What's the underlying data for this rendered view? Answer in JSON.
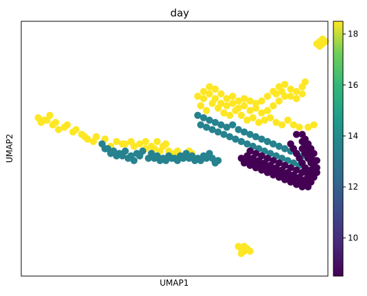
{
  "chart_data": {
    "type": "scatter",
    "title": "day",
    "xlabel": "UMAP1",
    "ylabel": "UMAP2",
    "xlim": [
      0,
      100
    ],
    "ylim": [
      0,
      100
    ],
    "x_ticks_shown": false,
    "y_ticks_shown": false,
    "grid": false,
    "colormap": "viridis",
    "colorbar": {
      "label": "",
      "range": [
        8.5,
        18.5
      ],
      "ticks": [
        10,
        12,
        14,
        16,
        18
      ],
      "tick_labels": [
        "10",
        "12",
        "14",
        "16",
        "18"
      ],
      "position": "right"
    },
    "clusters": [
      {
        "color_value": 18.0,
        "color": "#fde725",
        "points": [
          [
            5,
            62
          ],
          [
            8,
            60
          ],
          [
            12,
            59
          ],
          [
            15,
            57
          ],
          [
            18,
            56
          ],
          [
            20,
            54
          ],
          [
            22,
            53
          ],
          [
            25,
            52
          ],
          [
            28,
            51
          ],
          [
            32,
            52
          ],
          [
            35,
            53
          ],
          [
            38,
            52
          ],
          [
            42,
            51
          ],
          [
            44,
            53
          ],
          [
            47,
            52
          ],
          [
            50,
            48
          ],
          [
            53,
            47
          ],
          [
            56,
            48
          ],
          [
            45,
            49
          ],
          [
            40,
            50
          ]
        ]
      },
      {
        "color_value": 18.0,
        "color": "#fde725",
        "points": [
          [
            3,
            63
          ],
          [
            4,
            61
          ],
          [
            6,
            62
          ],
          [
            7,
            64
          ],
          [
            9,
            61
          ],
          [
            10,
            58
          ],
          [
            13,
            60
          ],
          [
            16,
            58
          ],
          [
            19,
            55
          ],
          [
            23,
            55
          ],
          [
            26,
            54
          ],
          [
            30,
            53
          ],
          [
            33,
            52
          ],
          [
            36,
            51
          ],
          [
            40,
            53
          ],
          [
            43,
            50
          ],
          [
            46,
            51
          ],
          [
            48,
            49
          ],
          [
            51,
            49
          ],
          [
            55,
            49
          ]
        ]
      },
      {
        "color_value": 18.0,
        "color": "#fde725",
        "points": [
          [
            58,
            72
          ],
          [
            60,
            74
          ],
          [
            62,
            76
          ],
          [
            64,
            75
          ],
          [
            66,
            73
          ],
          [
            68,
            71
          ],
          [
            70,
            72
          ],
          [
            72,
            70
          ],
          [
            74,
            71
          ],
          [
            76,
            70
          ],
          [
            78,
            69
          ],
          [
            80,
            70
          ],
          [
            82,
            72
          ],
          [
            84,
            74
          ],
          [
            86,
            76
          ],
          [
            88,
            77
          ],
          [
            90,
            75
          ],
          [
            92,
            74
          ],
          [
            94,
            76
          ],
          [
            95,
            78
          ]
        ]
      },
      {
        "color_value": 18.0,
        "color": "#fde725",
        "points": [
          [
            59,
            68
          ],
          [
            61,
            66
          ],
          [
            63,
            69
          ],
          [
            65,
            67
          ],
          [
            67,
            65
          ],
          [
            69,
            64
          ],
          [
            71,
            66
          ],
          [
            73,
            64
          ],
          [
            75,
            62
          ],
          [
            77,
            63
          ],
          [
            79,
            61
          ],
          [
            81,
            62
          ],
          [
            83,
            63
          ],
          [
            85,
            61
          ],
          [
            87,
            60
          ],
          [
            89,
            62
          ],
          [
            91,
            60
          ],
          [
            93,
            59
          ],
          [
            96,
            59
          ],
          [
            98,
            60
          ]
        ]
      },
      {
        "color_value": 18.0,
        "color": "#fde725",
        "points": [
          [
            60,
            71
          ],
          [
            62,
            73
          ],
          [
            64,
            71
          ],
          [
            66,
            69
          ],
          [
            68,
            68
          ],
          [
            70,
            69
          ],
          [
            72,
            67
          ],
          [
            74,
            68
          ],
          [
            76,
            66
          ],
          [
            78,
            67
          ],
          [
            80,
            65
          ],
          [
            82,
            66
          ],
          [
            84,
            68
          ],
          [
            86,
            70
          ],
          [
            88,
            72
          ],
          [
            90,
            72
          ],
          [
            92,
            71
          ],
          [
            94,
            73
          ],
          [
            85,
            73
          ],
          [
            87,
            74
          ]
        ]
      },
      {
        "color_value": 18.0,
        "color": "#fde725",
        "points": [
          [
            99,
            94
          ],
          [
            100,
            95
          ],
          [
            101,
            96
          ],
          [
            102,
            95
          ],
          [
            100,
            93
          ],
          [
            101,
            94
          ]
        ]
      },
      {
        "color_value": 18.0,
        "color": "#fde725",
        "points": [
          [
            72,
            9
          ],
          [
            73,
            8
          ],
          [
            74,
            7
          ],
          [
            75,
            8
          ],
          [
            76,
            7
          ],
          [
            74,
            9
          ],
          [
            73,
            6
          ]
        ]
      },
      {
        "color_value": 12.5,
        "color": "#26828e",
        "points": [
          [
            25,
            52
          ],
          [
            27,
            50
          ],
          [
            29,
            49
          ],
          [
            31,
            48
          ],
          [
            33,
            49
          ],
          [
            35,
            47
          ],
          [
            37,
            48
          ],
          [
            39,
            49
          ],
          [
            42,
            48
          ],
          [
            44,
            47
          ],
          [
            46,
            46
          ],
          [
            48,
            47
          ],
          [
            50,
            46
          ],
          [
            52,
            47
          ],
          [
            54,
            48
          ],
          [
            56,
            47
          ],
          [
            58,
            46
          ],
          [
            60,
            47
          ],
          [
            62,
            48
          ],
          [
            63,
            46
          ]
        ]
      },
      {
        "color_value": 12.5,
        "color": "#26828e",
        "points": [
          [
            26,
            50
          ],
          [
            28,
            48
          ],
          [
            30,
            47
          ],
          [
            32,
            47
          ],
          [
            34,
            46
          ],
          [
            36,
            45
          ],
          [
            38,
            47
          ],
          [
            41,
            46
          ],
          [
            43,
            46
          ],
          [
            45,
            45
          ],
          [
            47,
            45
          ],
          [
            49,
            46
          ],
          [
            51,
            45
          ],
          [
            53,
            46
          ],
          [
            55,
            46
          ],
          [
            57,
            45
          ],
          [
            59,
            45
          ],
          [
            61,
            46
          ],
          [
            64,
            44
          ],
          [
            65,
            45
          ]
        ]
      },
      {
        "color_value": 12.5,
        "color": "#26828e",
        "points": [
          [
            58,
            64
          ],
          [
            60,
            63
          ],
          [
            62,
            62
          ],
          [
            64,
            61
          ],
          [
            66,
            60
          ],
          [
            68,
            59
          ],
          [
            70,
            60
          ],
          [
            72,
            58
          ],
          [
            74,
            57
          ],
          [
            76,
            56
          ],
          [
            78,
            55
          ],
          [
            80,
            54
          ],
          [
            82,
            53
          ],
          [
            84,
            52
          ],
          [
            86,
            51
          ],
          [
            88,
            50
          ],
          [
            90,
            49
          ],
          [
            92,
            48
          ],
          [
            94,
            47
          ],
          [
            96,
            46
          ]
        ]
      },
      {
        "color_value": 12.5,
        "color": "#26828e",
        "points": [
          [
            59,
            60
          ],
          [
            61,
            59
          ],
          [
            63,
            58
          ],
          [
            65,
            57
          ],
          [
            67,
            56
          ],
          [
            69,
            55
          ],
          [
            71,
            54
          ],
          [
            73,
            53
          ],
          [
            75,
            52
          ],
          [
            77,
            51
          ],
          [
            79,
            50
          ],
          [
            81,
            49
          ],
          [
            83,
            48
          ],
          [
            85,
            47
          ],
          [
            87,
            46
          ],
          [
            89,
            45
          ],
          [
            91,
            44
          ],
          [
            93,
            43
          ],
          [
            95,
            42
          ],
          [
            97,
            41
          ]
        ]
      },
      {
        "color_value": 8.5,
        "color": "#440154",
        "points": [
          [
            73,
            46
          ],
          [
            75,
            45
          ],
          [
            77,
            44
          ],
          [
            79,
            43
          ],
          [
            81,
            42
          ],
          [
            83,
            41
          ],
          [
            85,
            40
          ],
          [
            87,
            39
          ],
          [
            89,
            38
          ],
          [
            91,
            37
          ],
          [
            93,
            36
          ],
          [
            95,
            35
          ],
          [
            97,
            36
          ],
          [
            98,
            38
          ],
          [
            99,
            40
          ],
          [
            98,
            42
          ],
          [
            97,
            44
          ],
          [
            96,
            46
          ],
          [
            95,
            48
          ],
          [
            94,
            50
          ]
        ]
      },
      {
        "color_value": 8.5,
        "color": "#440154",
        "points": [
          [
            74,
            44
          ],
          [
            76,
            43
          ],
          [
            78,
            42
          ],
          [
            80,
            41
          ],
          [
            82,
            40
          ],
          [
            84,
            39
          ],
          [
            86,
            38
          ],
          [
            88,
            37
          ],
          [
            90,
            36
          ],
          [
            92,
            35
          ],
          [
            94,
            34
          ],
          [
            96,
            34
          ],
          [
            97,
            38
          ],
          [
            96,
            40
          ],
          [
            95,
            42
          ],
          [
            94,
            44
          ],
          [
            93,
            46
          ],
          [
            92,
            48
          ],
          [
            91,
            50
          ],
          [
            90,
            52
          ]
        ]
      },
      {
        "color_value": 8.5,
        "color": "#440154",
        "points": [
          [
            75,
            47
          ],
          [
            77,
            46
          ],
          [
            79,
            45
          ],
          [
            81,
            44
          ],
          [
            83,
            43
          ],
          [
            85,
            42
          ],
          [
            87,
            41
          ],
          [
            89,
            40
          ],
          [
            91,
            39
          ],
          [
            93,
            38
          ],
          [
            95,
            37
          ],
          [
            97,
            37
          ],
          [
            98,
            39
          ],
          [
            99,
            42
          ],
          [
            98,
            45
          ],
          [
            97,
            47
          ],
          [
            96,
            49
          ],
          [
            95,
            51
          ],
          [
            94,
            53
          ],
          [
            96,
            52
          ]
        ]
      },
      {
        "color_value": 8.5,
        "color": "#440154",
        "points": [
          [
            76,
            49
          ],
          [
            78,
            48
          ],
          [
            80,
            47
          ],
          [
            82,
            46
          ],
          [
            84,
            45
          ],
          [
            86,
            44
          ],
          [
            88,
            43
          ],
          [
            90,
            42
          ],
          [
            92,
            41
          ],
          [
            94,
            40
          ],
          [
            96,
            39
          ],
          [
            97,
            41
          ],
          [
            98,
            43
          ],
          [
            99,
            45
          ],
          [
            98,
            48
          ],
          [
            97,
            50
          ],
          [
            96,
            52
          ],
          [
            95,
            54
          ],
          [
            94,
            56
          ],
          [
            92,
            56
          ]
        ]
      }
    ]
  }
}
